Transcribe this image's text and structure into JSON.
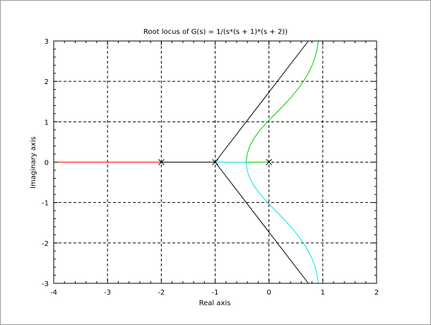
{
  "chart_data": {
    "type": "line",
    "title": "Root locus of G(s) = 1/(s*(s + 1)*(s + 2))",
    "xlabel": "Real axis",
    "ylabel": "Imaginary axis",
    "xlim": [
      -4,
      2
    ],
    "ylim": [
      -3,
      3
    ],
    "xticks": [
      -4,
      -3,
      -2,
      -1,
      0,
      1,
      2
    ],
    "yticks": [
      -3,
      -2,
      -1,
      0,
      1,
      2,
      3
    ],
    "xtick_labels": [
      "-4",
      "-3",
      "-2",
      "-1",
      "0",
      "1",
      "2"
    ],
    "ytick_labels": [
      "-3",
      "-2",
      "-1",
      "0",
      "1",
      "2",
      "3"
    ],
    "grid": true,
    "grid_style": "dashed",
    "colors": {
      "branch_real": "#ff0000",
      "branch_upper": "#00cc00",
      "branch_lower": "#00e5e5",
      "asymptote": "#000000",
      "grid": "#000000",
      "frame_border": "#9a9a9a"
    },
    "poles": [
      {
        "x": -2,
        "y": 0
      },
      {
        "x": -1,
        "y": 0
      },
      {
        "x": 0,
        "y": 0
      }
    ],
    "asymptotes": {
      "centroid": -1,
      "angles_deg": [
        60,
        -60,
        180
      ],
      "segment_real_axis": {
        "from": -2,
        "to": -1
      }
    },
    "series": [
      {
        "points": [
          [
            -2,
            0
          ],
          [
            -4,
            0
          ]
        ]
      },
      {
        "points": [
          [
            0,
            0
          ],
          [
            -0.4226,
            0
          ],
          [
            -0.4057,
            0.2
          ],
          [
            -0.3554,
            0.4
          ],
          [
            -0.2731,
            0.6
          ],
          [
            -0.1613,
            0.8
          ],
          [
            -0.0264,
            1.0
          ],
          [
            0.1211,
            1.2
          ],
          [
            0.2677,
            1.4
          ],
          [
            0.4063,
            1.6
          ],
          [
            0.5312,
            1.8
          ],
          [
            0.6396,
            2.0
          ],
          [
            0.73,
            2.2
          ],
          [
            0.8024,
            2.4
          ],
          [
            0.8573,
            2.6
          ],
          [
            0.8956,
            2.8
          ],
          [
            0.9184,
            3.0
          ]
        ]
      },
      {
        "points": [
          [
            -1,
            0
          ],
          [
            -0.4226,
            0
          ],
          [
            -0.4057,
            -0.2
          ],
          [
            -0.3554,
            -0.4
          ],
          [
            -0.2731,
            -0.6
          ],
          [
            -0.1613,
            -0.8
          ],
          [
            -0.0264,
            -1.0
          ],
          [
            0.1211,
            -1.2
          ],
          [
            0.2677,
            -1.4
          ],
          [
            0.4063,
            -1.6
          ],
          [
            0.5312,
            -1.8
          ],
          [
            0.6396,
            -2.0
          ],
          [
            0.73,
            -2.2
          ],
          [
            0.8024,
            -2.4
          ],
          [
            0.8573,
            -2.6
          ],
          [
            0.8956,
            -2.8
          ],
          [
            0.9184,
            -3.0
          ]
        ]
      }
    ]
  }
}
